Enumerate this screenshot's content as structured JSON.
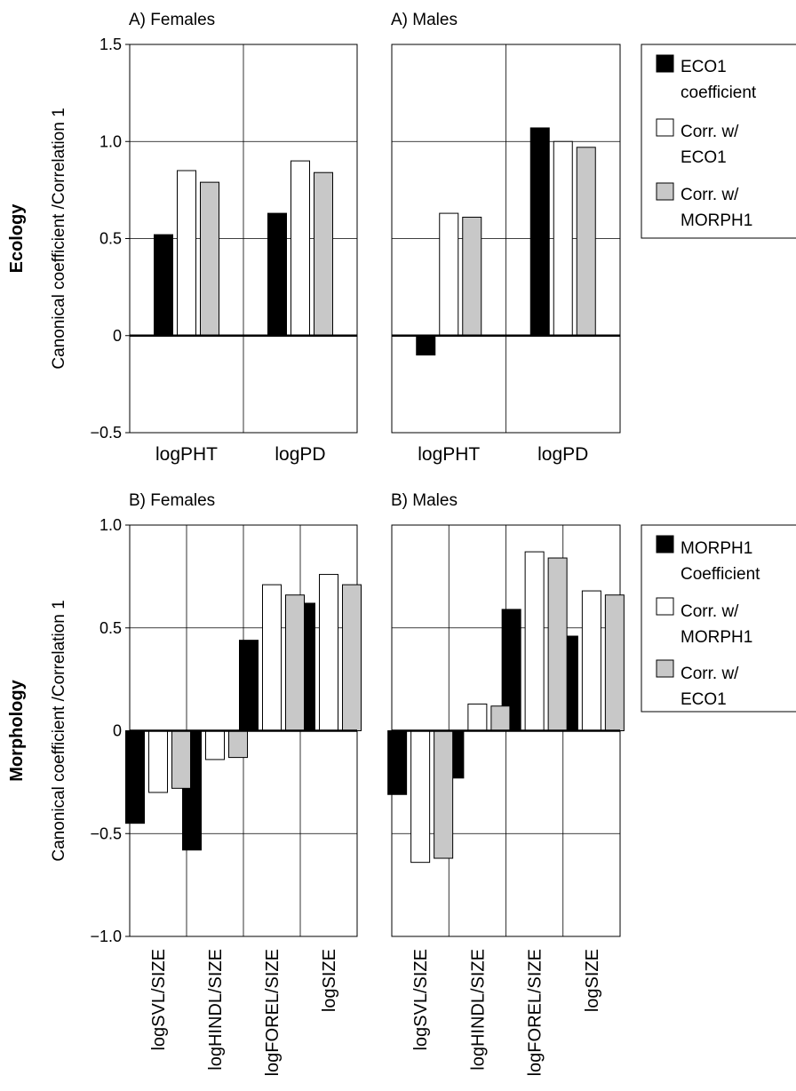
{
  "chart_data": [
    {
      "type": "bar",
      "row_label": "Ecology",
      "ylabel": "Canonical coefficient /Correlation 1",
      "ylim": [
        -0.5,
        1.5
      ],
      "yticks": [
        "1.5",
        "1.0",
        "0.5",
        "0",
        "−0.5"
      ],
      "legend": [
        "ECO1 coefficient",
        "Corr. w/ ECO1",
        "Corr. w/ MORPH1"
      ],
      "legend_position": "right",
      "panels": [
        {
          "title": "A) Females",
          "categories": [
            "logPHT",
            "logPD"
          ],
          "series": [
            {
              "name": "ECO1 coefficient",
              "values": [
                0.52,
                0.63
              ]
            },
            {
              "name": "Corr. w/ ECO1",
              "values": [
                0.85,
                0.9
              ]
            },
            {
              "name": "Corr. w/ MORPH1",
              "values": [
                0.79,
                0.84
              ]
            }
          ]
        },
        {
          "title": "A) Males",
          "categories": [
            "logPHT",
            "logPD"
          ],
          "series": [
            {
              "name": "ECO1 coefficient",
              "values": [
                -0.1,
                1.07
              ]
            },
            {
              "name": "Corr. w/ ECO1",
              "values": [
                0.63,
                1.0
              ]
            },
            {
              "name": "Corr. w/ MORPH1",
              "values": [
                0.61,
                0.97
              ]
            }
          ]
        }
      ]
    },
    {
      "type": "bar",
      "row_label": "Morphology",
      "ylabel": "Canonical coefficient /Correlation 1",
      "ylim": [
        -1.0,
        1.0
      ],
      "yticks": [
        "1.0",
        "0.5",
        "0",
        "−0.5",
        "−1.0"
      ],
      "legend": [
        "MORPH1 Coefficient",
        "Corr. w/ MORPH1",
        "Corr. w/ ECO1"
      ],
      "legend_position": "right",
      "panels": [
        {
          "title": "B) Females",
          "categories": [
            "logSVL/SIZE",
            "logHINDL/SIZE",
            "logFOREL/SIZE",
            "logSIZE"
          ],
          "series": [
            {
              "name": "MORPH1 Coefficient",
              "values": [
                -0.45,
                -0.58,
                0.44,
                0.62
              ]
            },
            {
              "name": "Corr. w/ MORPH1",
              "values": [
                -0.3,
                -0.14,
                0.71,
                0.76
              ]
            },
            {
              "name": "Corr. w/ ECO1",
              "values": [
                -0.28,
                -0.13,
                0.66,
                0.71
              ]
            }
          ]
        },
        {
          "title": "B) Males",
          "categories": [
            "logSVL/SIZE",
            "logHINDL/SIZE",
            "logFOREL/SIZE",
            "logSIZE"
          ],
          "series": [
            {
              "name": "MORPH1 Coefficient",
              "values": [
                -0.31,
                -0.23,
                0.59,
                0.46
              ]
            },
            {
              "name": "Corr. w/ MORPH1",
              "values": [
                -0.64,
                0.13,
                0.87,
                0.68
              ]
            },
            {
              "name": "Corr. w/ ECO1",
              "values": [
                -0.62,
                0.12,
                0.84,
                0.66
              ]
            }
          ]
        }
      ]
    }
  ],
  "colors": {
    "coefficient": "#000000",
    "corr_same": "#ffffff",
    "corr_other": "#c8c8c8",
    "axis": "#000000",
    "grid": "#000000"
  }
}
